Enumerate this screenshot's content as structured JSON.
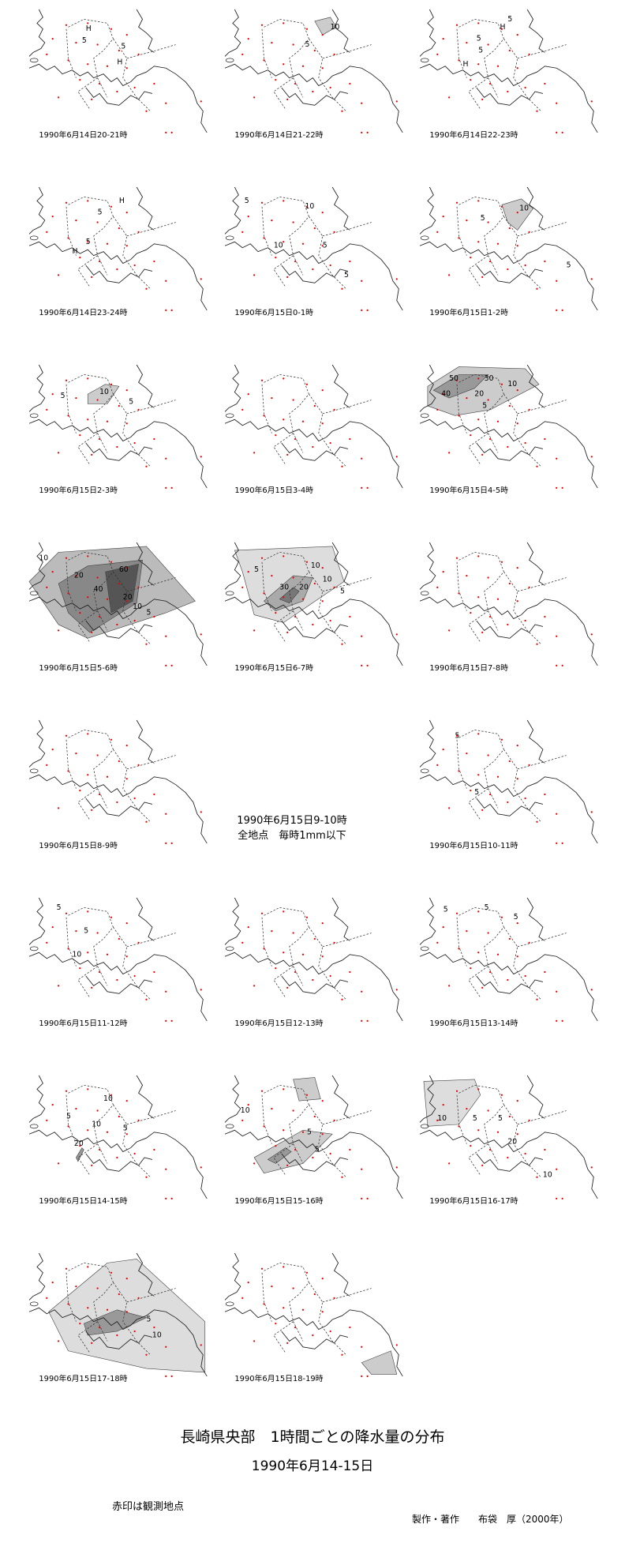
{
  "panels": [
    {
      "caption": "1990年6月14日20-21時",
      "labels": [
        "H",
        "5",
        "5",
        "H"
      ]
    },
    {
      "caption": "1990年6月14日21-22時",
      "labels": [
        "10",
        "5"
      ]
    },
    {
      "caption": "1990年6月14日22-23時",
      "labels": [
        "5",
        "H",
        "5",
        "5",
        "H"
      ]
    },
    {
      "caption": "1990年6月14日23-24時",
      "labels": [
        "H",
        "5",
        "5",
        "H"
      ]
    },
    {
      "caption": "1990年6月15日0-1時",
      "labels": [
        "5",
        "10",
        "10",
        "5",
        "5"
      ]
    },
    {
      "caption": "1990年6月15日1-2時",
      "labels": [
        "10",
        "5",
        "5"
      ]
    },
    {
      "caption": "1990年6月15日2-3時",
      "labels": [
        "10",
        "5",
        "5"
      ]
    },
    {
      "caption": "1990年6月15日3-4時"
    },
    {
      "caption": "1990年6月15日4-5時",
      "labels": [
        "50",
        "30",
        "10",
        "40",
        "20",
        "5"
      ]
    },
    {
      "caption": "1990年6月15日5-6時",
      "labels": [
        "10",
        "20",
        "40",
        "60",
        "20",
        "10",
        "5"
      ]
    },
    {
      "caption": "1990年6月15日6-7時",
      "labels": [
        "10",
        "5",
        "30",
        "20",
        "10",
        "5"
      ]
    },
    {
      "caption": "1990年6月15日7-8時"
    },
    {
      "caption": "1990年6月15日8-9時"
    },
    {
      "caption": "1990年6月15日10-11時",
      "labels": [
        "5",
        "5"
      ]
    },
    {
      "caption": "1990年6月15日11-12時",
      "labels": [
        "5",
        "5",
        "10"
      ]
    },
    {
      "caption": "1990年6月15日12-13時"
    },
    {
      "caption": "1990年6月15日13-14時",
      "labels": [
        "5",
        "5",
        "5"
      ]
    },
    {
      "caption": "1990年6月15日14-15時",
      "labels": [
        "10",
        "5",
        "10",
        "20",
        "5"
      ]
    },
    {
      "caption": "1990年6月15日15-16時",
      "labels": [
        "10",
        "5",
        "5"
      ]
    },
    {
      "caption": "1990年6月15日16-17時",
      "labels": [
        "10",
        "5",
        "5",
        "20",
        "10"
      ]
    },
    {
      "caption": "1990年6月15日17-18時",
      "labels": [
        "5",
        "10"
      ]
    },
    {
      "caption": "1990年6月15日18-19時"
    }
  ],
  "note_panel": {
    "lines": [
      "1990年6月15日9-10時",
      "全地点　毎時1mm以下"
    ]
  },
  "footer": {
    "title": "長崎県央部　1時間ごとの降水量の分布",
    "date": "1990年6月14-15日",
    "legend": "赤印は観測地点",
    "credit": "製作・著作　　布袋　厚（2000年）"
  }
}
